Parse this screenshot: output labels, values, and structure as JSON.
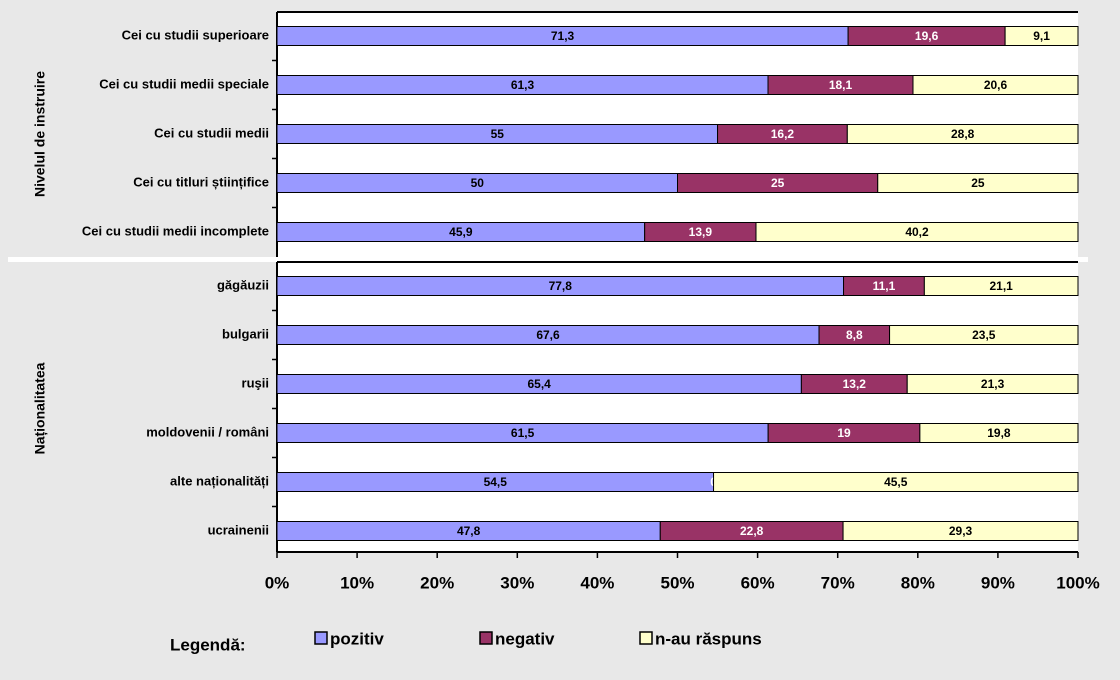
{
  "chart_data": {
    "type": "bar",
    "orientation": "horizontal",
    "stacked": "percent",
    "groups": [
      {
        "label": "Nivelul de instruire",
        "categories": [
          "Cei cu studii superioare",
          "Cei cu studii medii speciale",
          "Cei cu studii medii",
          "Cei cu titluri științifice",
          "Cei cu studii medii incomplete"
        ]
      },
      {
        "label": "Naționalitatea",
        "categories": [
          "găgăuzii",
          "bulgarii",
          "ruşii",
          "moldovenii / români",
          "alte naționalități",
          "ucrainenii"
        ]
      }
    ],
    "series": [
      {
        "name": "pozitiv",
        "color": "#9999ff",
        "label_color": "#000000",
        "values": [
          71.3,
          61.3,
          55,
          50,
          45.9,
          77.8,
          67.6,
          65.4,
          61.5,
          54.5,
          47.8
        ],
        "value_labels": [
          "71,3",
          "61,3",
          "55",
          "50",
          "45,9",
          "77,8",
          "67,6",
          "65,4",
          "61,5",
          "54,5",
          "47,8"
        ]
      },
      {
        "name": "negativ",
        "color": "#993366",
        "label_color": "#ffffff",
        "values": [
          19.6,
          18.1,
          16.2,
          25,
          13.9,
          11.1,
          8.8,
          13.2,
          19,
          0,
          22.8
        ],
        "value_labels": [
          "19,6",
          "18,1",
          "16,2",
          "25",
          "13,9",
          "11,1",
          "8,8",
          "13,2",
          "19",
          "0",
          "22,8"
        ]
      },
      {
        "name": "n-au răspuns",
        "color": "#ffffcc",
        "label_color": "#000000",
        "values": [
          9.1,
          20.6,
          28.8,
          25,
          40.2,
          21.1,
          23.5,
          21.3,
          19.8,
          45.5,
          29.3
        ],
        "value_labels": [
          "9,1",
          "20,6",
          "28,8",
          "25",
          "40,2",
          "21,1",
          "23,5",
          "21,3",
          "19,8",
          "45,5",
          "29,3"
        ]
      }
    ],
    "xlim": [
      0,
      100
    ],
    "xticks": [
      {
        "value": 0,
        "label": "0%"
      },
      {
        "value": 10,
        "label": "10%"
      },
      {
        "value": 20,
        "label": "20%"
      },
      {
        "value": 30,
        "label": "30%"
      },
      {
        "value": 40,
        "label": "40%"
      },
      {
        "value": 50,
        "label": "50%"
      },
      {
        "value": 60,
        "label": "60%"
      },
      {
        "value": 70,
        "label": "70%"
      },
      {
        "value": 80,
        "label": "80%"
      },
      {
        "value": 90,
        "label": "90%"
      },
      {
        "value": 100,
        "label": "100%"
      }
    ],
    "legend_title": "Legendă:"
  }
}
